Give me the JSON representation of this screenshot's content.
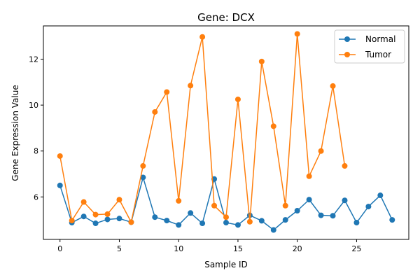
{
  "chart_data": {
    "type": "line",
    "title": "Gene: DCX",
    "xlabel": "Sample ID",
    "ylabel": "Gene Expression Value",
    "xlim": [
      -1.4,
      29.4
    ],
    "ylim": [
      4.15,
      13.45
    ],
    "xticks": [
      0,
      5,
      10,
      15,
      20,
      25
    ],
    "yticks": [
      6,
      8,
      10,
      12
    ],
    "grid": false,
    "legend": "top-right",
    "series": [
      {
        "name": "Normal",
        "color": "#1f77b4",
        "marker": "circle",
        "x": [
          0,
          1,
          2,
          3,
          4,
          5,
          6,
          7,
          8,
          9,
          10,
          11,
          12,
          13,
          14,
          15,
          16,
          17,
          18,
          19,
          20,
          21,
          22,
          23,
          24,
          25,
          26,
          27,
          28
        ],
        "values": [
          6.5,
          4.88,
          5.15,
          4.85,
          5.02,
          5.06,
          4.9,
          6.85,
          5.12,
          4.97,
          4.78,
          5.3,
          4.85,
          6.78,
          4.88,
          4.78,
          5.2,
          4.96,
          4.56,
          5.0,
          5.4,
          5.88,
          5.2,
          5.18,
          5.85,
          4.88,
          5.58,
          6.07,
          5.0
        ]
      },
      {
        "name": "Tumor",
        "color": "#ff7f0e",
        "marker": "circle",
        "x": [
          0,
          1,
          2,
          3,
          4,
          5,
          6,
          7,
          8,
          9,
          10,
          11,
          12,
          13,
          14,
          15,
          16,
          17,
          18,
          19,
          20,
          21,
          22,
          23,
          24
        ],
        "values": [
          7.78,
          4.97,
          5.78,
          5.23,
          5.25,
          5.88,
          4.9,
          7.35,
          9.7,
          10.57,
          5.83,
          10.85,
          12.97,
          5.62,
          5.12,
          10.25,
          4.92,
          11.9,
          9.08,
          5.62,
          13.1,
          6.9,
          8.0,
          10.83,
          7.35
        ]
      }
    ]
  }
}
